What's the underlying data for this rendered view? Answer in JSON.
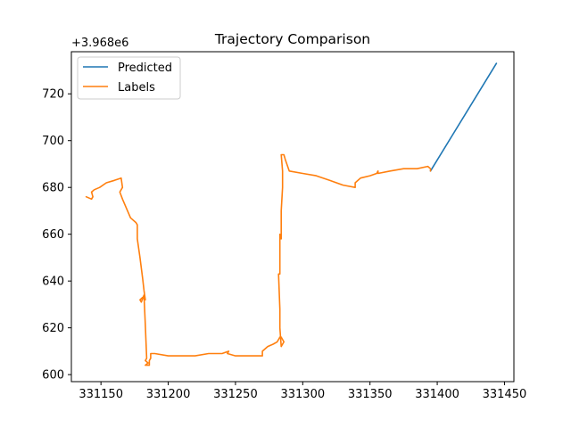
{
  "chart_data": {
    "type": "line",
    "title": "Trajectory Comparison",
    "xlabel": "",
    "ylabel": "",
    "y_offset_label": "+3.968e6",
    "xlim": [
      331128,
      331457
    ],
    "ylim": [
      597,
      738
    ],
    "x_ticks": [
      331150,
      331200,
      331250,
      331300,
      331350,
      331400,
      331450
    ],
    "y_ticks": [
      600,
      620,
      640,
      660,
      680,
      700,
      720
    ],
    "grid": false,
    "legend": "top-left",
    "series": [
      {
        "name": "Predicted",
        "color": "#1f77b4",
        "x": [
          331395,
          331444
        ],
        "y": [
          687,
          733
        ]
      },
      {
        "name": "Labels",
        "color": "#ff7f0e",
        "x": [
          331139,
          331143,
          331144,
          331143,
          331145,
          331149,
          331154,
          331160,
          331165,
          331166,
          331164,
          331166,
          331172,
          331176,
          331177,
          331177,
          331179,
          331181,
          331182,
          331183,
          331181,
          331179,
          331180,
          331182,
          331183,
          331184,
          331183,
          331185,
          331183,
          331186,
          331186,
          331187,
          331187,
          331190,
          331200,
          331210,
          331220,
          331230,
          331240,
          331245,
          331244,
          331250,
          331260,
          331270,
          331270,
          331274,
          331278,
          331281,
          331283,
          331284,
          331286,
          331284,
          331283,
          331283,
          331282,
          331283,
          331283,
          331283,
          331284,
          331284,
          331285,
          331285,
          331284,
          331286,
          331287,
          331290,
          331300,
          331310,
          331320,
          331330,
          331339,
          331339,
          331343,
          331350,
          331355,
          331356,
          331356,
          331365,
          331375,
          331385,
          331393,
          331395,
          331395
        ],
        "y": [
          676,
          675,
          676,
          678,
          679,
          680,
          682,
          683,
          684,
          680,
          678,
          675,
          667,
          665,
          664,
          658,
          650,
          641,
          636,
          632,
          633,
          632,
          631,
          634,
          621,
          607,
          606,
          605,
          604,
          604,
          606,
          607,
          609,
          609,
          608,
          608,
          608,
          609,
          609,
          610,
          609,
          608,
          608,
          608,
          610,
          612,
          613,
          614,
          616,
          616,
          614,
          612,
          620,
          628,
          643,
          643,
          657,
          660,
          658,
          670,
          680,
          687,
          694,
          694,
          692,
          687,
          686,
          685,
          683,
          681,
          680,
          682,
          684,
          685,
          686,
          687,
          686,
          687,
          688,
          688,
          689,
          688,
          687
        ]
      }
    ]
  }
}
